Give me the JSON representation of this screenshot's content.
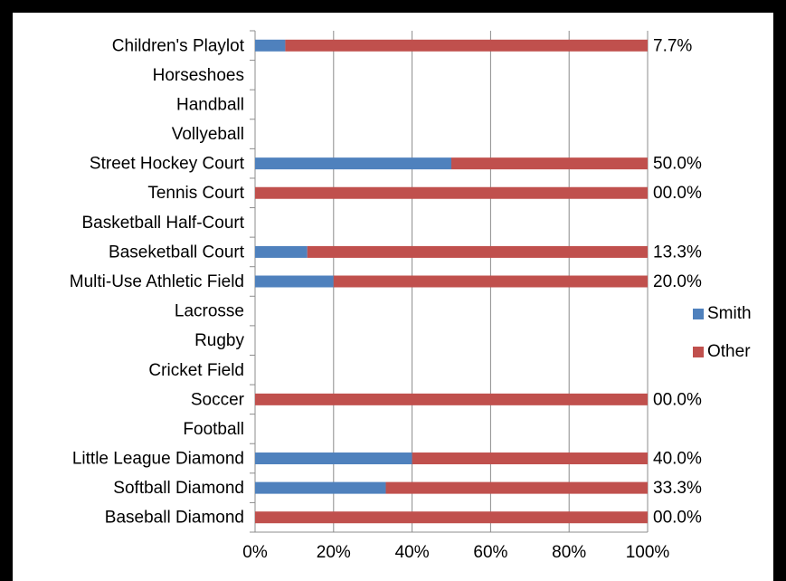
{
  "chart_data": {
    "type": "bar",
    "orientation": "horizontal",
    "stacked": true,
    "normalized": true,
    "categories": [
      "Children's Playlot",
      "Horseshoes",
      "Handball",
      "Vollyeball",
      "Street Hockey Court",
      "Tennis Court",
      "Basketball Half-Court",
      "Baseketball Court",
      "Multi-Use Athletic Field",
      "Lacrosse",
      "Rugby",
      "Cricket Field",
      "Soccer",
      "Football",
      "Little League Diamond",
      "Softball Diamond",
      "Baseball Diamond"
    ],
    "series": [
      {
        "name": "Smith",
        "color": "#4F81BD",
        "values": [
          7.7,
          null,
          null,
          null,
          50.0,
          0,
          null,
          13.3,
          20.0,
          null,
          null,
          null,
          0,
          null,
          40.0,
          33.3,
          0
        ]
      },
      {
        "name": "Other",
        "color": "#C0504D",
        "values": [
          92.3,
          null,
          null,
          null,
          50.0,
          100,
          null,
          86.7,
          80.0,
          null,
          null,
          null,
          100,
          null,
          60.0,
          66.7,
          100
        ]
      }
    ],
    "data_labels": [
      "7.7%",
      "",
      "",
      "",
      "50.0%",
      "00.0%",
      "",
      "13.3%",
      "20.0%",
      "",
      "",
      "",
      "00.0%",
      "",
      "40.0%",
      "33.3%",
      "00.0%"
    ],
    "x_ticks": [
      "0%",
      "20%",
      "40%",
      "60%",
      "80%",
      "100%"
    ],
    "xlim": [
      0,
      100
    ],
    "grid": true,
    "legend_position": "right"
  }
}
